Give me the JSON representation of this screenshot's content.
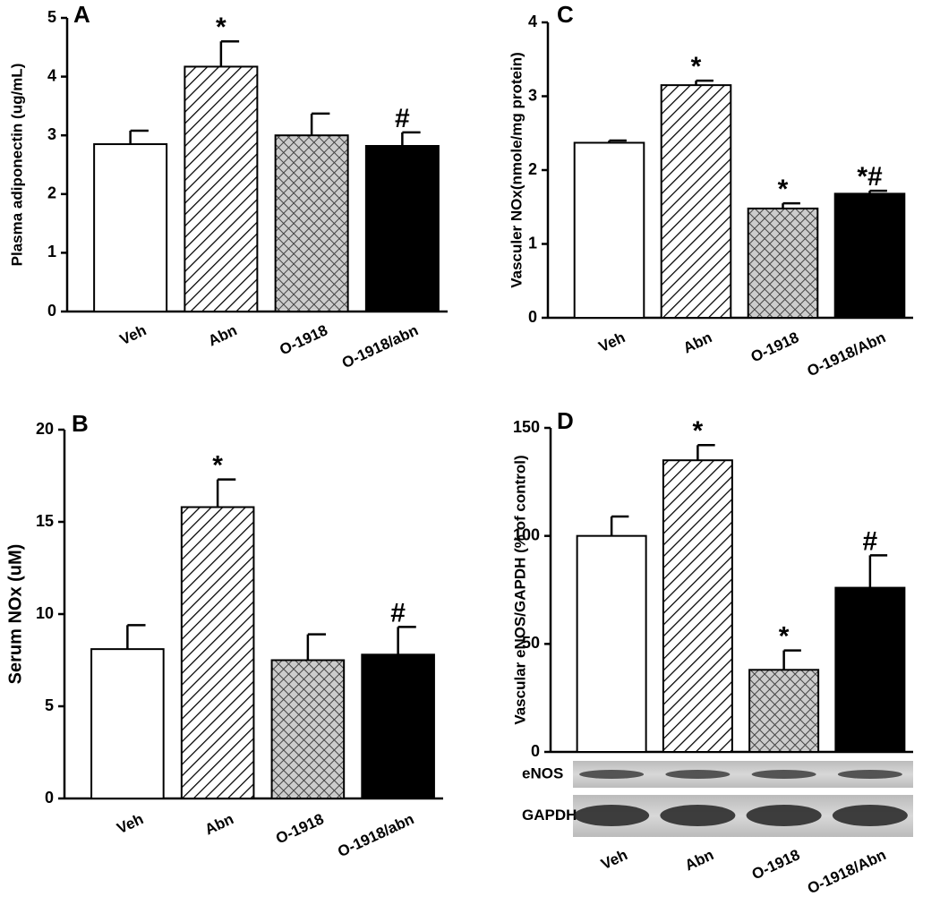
{
  "chart_data": [
    {
      "type": "bar",
      "panel": "A",
      "ylabel": "Plasma adiponectin (ug/mL)",
      "categories": [
        "Veh",
        "Abn",
        "O-1918",
        "O-1918/abn"
      ],
      "values": [
        2.85,
        4.17,
        3.0,
        2.82
      ],
      "errors": [
        0.23,
        0.43,
        0.37,
        0.23
      ],
      "annotations": [
        null,
        "*",
        null,
        "#"
      ],
      "fills": [
        "white",
        "hatch",
        "cross",
        "black"
      ],
      "ylim": [
        0,
        5
      ],
      "yticks": [
        0,
        1,
        2,
        3,
        4,
        5
      ]
    },
    {
      "type": "bar",
      "panel": "C",
      "ylabel": "Vasculer NOx(nmole/mg protein)",
      "categories": [
        "Veh",
        "Abn",
        "O-1918",
        "O-1918/Abn"
      ],
      "values": [
        2.37,
        3.15,
        1.48,
        1.68
      ],
      "errors": [
        0.03,
        0.06,
        0.07,
        0.04
      ],
      "annotations": [
        null,
        "*",
        "*",
        "*#"
      ],
      "fills": [
        "white",
        "hatch",
        "cross",
        "black"
      ],
      "ylim": [
        0,
        4
      ],
      "yticks": [
        0,
        1,
        2,
        3,
        4
      ]
    },
    {
      "type": "bar",
      "panel": "B",
      "ylabel": "Serum NOx (uM)",
      "categories": [
        "Veh",
        "Abn",
        "O-1918",
        "O-1918/abn"
      ],
      "values": [
        8.1,
        15.8,
        7.5,
        7.8
      ],
      "errors": [
        1.3,
        1.5,
        1.4,
        1.5
      ],
      "annotations": [
        null,
        "*",
        null,
        "#"
      ],
      "fills": [
        "white",
        "hatch",
        "cross",
        "black"
      ],
      "ylim": [
        0,
        20
      ],
      "yticks": [
        0,
        5,
        10,
        15,
        20
      ]
    },
    {
      "type": "bar",
      "panel": "D",
      "ylabel": "Vascular eNOS/GAPDH (% of control)",
      "categories": [
        "Veh",
        "Abn",
        "O-1918",
        "O-1918/Abn"
      ],
      "values": [
        100,
        135,
        38,
        76
      ],
      "errors": [
        9,
        7,
        9,
        15
      ],
      "annotations": [
        null,
        "*",
        "*",
        "#"
      ],
      "fills": [
        "white",
        "hatch",
        "cross",
        "black"
      ],
      "blot_labels": [
        "eNOS",
        "GAPDH"
      ],
      "ylim": [
        0,
        150
      ],
      "yticks": [
        0,
        50,
        100,
        150
      ]
    }
  ]
}
